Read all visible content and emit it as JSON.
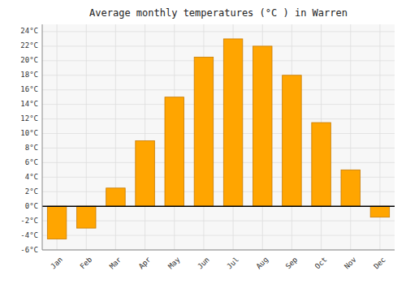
{
  "chart_data": {
    "type": "bar",
    "title": "Average monthly temperatures (°C ) in Warren",
    "categories": [
      "Jan",
      "Feb",
      "Mar",
      "Apr",
      "May",
      "Jun",
      "Jul",
      "Aug",
      "Sep",
      "Oct",
      "Nov",
      "Dec"
    ],
    "values": [
      -4.5,
      -3.0,
      2.5,
      9.0,
      15.0,
      20.5,
      23.0,
      22.0,
      18.0,
      11.5,
      5.0,
      -1.5
    ],
    "color": "#FFA500",
    "ylim": [
      -6,
      25
    ],
    "yticks": [
      {
        "value": -6,
        "label": "-6°C"
      },
      {
        "value": -4,
        "label": "-4°C"
      },
      {
        "value": -2,
        "label": "-2°C"
      },
      {
        "value": 0,
        "label": "0°C"
      },
      {
        "value": 2,
        "label": "2°C"
      },
      {
        "value": 4,
        "label": "4°C"
      },
      {
        "value": 6,
        "label": "6°C"
      },
      {
        "value": 8,
        "label": "8°C"
      },
      {
        "value": 10,
        "label": "10°C"
      },
      {
        "value": 12,
        "label": "12°C"
      },
      {
        "value": 14,
        "label": "14°C"
      },
      {
        "value": 16,
        "label": "16°C"
      },
      {
        "value": 18,
        "label": "18°C"
      },
      {
        "value": 20,
        "label": "20°C"
      },
      {
        "value": 22,
        "label": "22°C"
      },
      {
        "value": 24,
        "label": "24°C"
      }
    ],
    "grid": true
  }
}
